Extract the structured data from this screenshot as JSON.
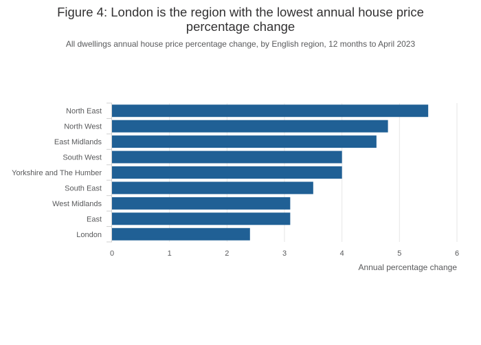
{
  "chart_data": {
    "type": "bar",
    "orientation": "horizontal",
    "title_lines": [
      "Figure 4: London is the region with the lowest annual house price",
      "percentage change"
    ],
    "subtitle": "All dwellings annual house price percentage change, by English region, 12 months to April 2023",
    "xlabel": "Annual percentage change",
    "ylabel": "",
    "categories": [
      "North East",
      "North West",
      "East Midlands",
      "South West",
      "Yorkshire and The Humber",
      "South East",
      "West Midlands",
      "East",
      "London"
    ],
    "values": [
      5.5,
      4.8,
      4.6,
      4.0,
      4.0,
      3.5,
      3.1,
      3.1,
      2.4
    ],
    "xlim": [
      0,
      6
    ],
    "xticks": [
      "0",
      "1",
      "2",
      "3",
      "4",
      "5",
      "6"
    ],
    "grid": true,
    "legend": "none",
    "bar_color": "#206095",
    "grid_color": "#e6e6e6"
  }
}
